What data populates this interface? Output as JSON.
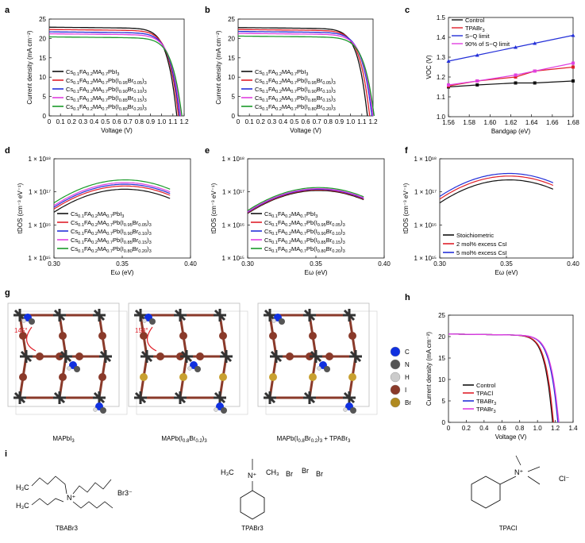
{
  "panels": {
    "a": "a",
    "b": "b",
    "c": "c",
    "d": "d",
    "e": "e",
    "f": "f",
    "g": "g",
    "h": "h",
    "i": "i"
  },
  "colors": {
    "black": "#111111",
    "red": "#e0202a",
    "blue": "#2430d8",
    "magenta": "#e040e0",
    "green": "#1a9a2a"
  },
  "chart_data": [
    {
      "panel": "a",
      "type": "line",
      "xlabel": "Voltage (V)",
      "ylabel": "Current density (mA cm⁻²)",
      "xlim": [
        0,
        1.2
      ],
      "ylim": [
        0,
        25
      ],
      "xticks": [
        "0",
        "0.1",
        "0.2",
        "0.3",
        "0.4",
        "0.5",
        "0.6",
        "0.7",
        "0.8",
        "0.9",
        "1.0",
        "1.1",
        "1.2"
      ],
      "yticks": [
        "0",
        "5",
        "10",
        "15",
        "20",
        "25"
      ],
      "series": [
        {
          "name": "Cs0.1FA0.2MA0.7PbI3",
          "color": "#111111",
          "jsc": 22.9,
          "voc": 1.135
        },
        {
          "name": "Cs0.1FA0.2MA0.7Pb(I0.95Br0.05)3",
          "color": "#e0202a",
          "jsc": 22.3,
          "voc": 1.15
        },
        {
          "name": "Cs0.1FA0.2MA0.7Pb(I0.90Br0.10)3",
          "color": "#2430d8",
          "jsc": 21.7,
          "voc": 1.16
        },
        {
          "name": "Cs0.1FA0.2MA0.7Pb(I0.85Br0.15)3",
          "color": "#e040e0",
          "jsc": 21.2,
          "voc": 1.17
        },
        {
          "name": "Cs0.1FA0.2MA0.7Pb(I0.80Br0.20)3",
          "color": "#1a9a2a",
          "jsc": 20.4,
          "voc": 1.18
        }
      ]
    },
    {
      "panel": "b",
      "type": "line",
      "xlabel": "Voltage (V)",
      "ylabel": "Current density (mA cm⁻²)",
      "xlim": [
        0,
        1.2
      ],
      "ylim": [
        0,
        25
      ],
      "xticks": [
        "0",
        "0.1",
        "0.2",
        "0.3",
        "0.4",
        "0.5",
        "0.6",
        "0.7",
        "0.8",
        "0.9",
        "1.0",
        "1.1",
        "1.2"
      ],
      "yticks": [
        "0",
        "5",
        "10",
        "15",
        "20",
        "25"
      ],
      "series": [
        {
          "name": "Cs0.1FA0.2MA0.7PbI3",
          "color": "#111111",
          "jsc": 22.8,
          "voc": 1.15
        },
        {
          "name": "Cs0.1FA0.2MA0.7Pb(I0.95Br0.05)3",
          "color": "#e0202a",
          "jsc": 22.3,
          "voc": 1.17
        },
        {
          "name": "Cs0.1FA0.2MA0.7Pb(I0.90Br0.10)3",
          "color": "#2430d8",
          "jsc": 21.8,
          "voc": 1.19
        },
        {
          "name": "Cs0.1FA0.2MA0.7Pb(I0.85Br0.15)3",
          "color": "#e040e0",
          "jsc": 21.3,
          "voc": 1.2
        },
        {
          "name": "Cs0.1FA0.2MA0.7Pb(I0.80Br0.20)3",
          "color": "#1a9a2a",
          "jsc": 20.6,
          "voc": 1.21
        }
      ]
    },
    {
      "panel": "c",
      "type": "line",
      "xlabel": "Bandgap (eV)",
      "ylabel": "VOC (V)",
      "xlim": [
        1.56,
        1.69
      ],
      "ylim": [
        1.0,
        1.5
      ],
      "xticks": [
        "1.56",
        "1.58",
        "1.60",
        "1.62",
        "1.64",
        "1.66",
        "1.68"
      ],
      "yticks": [
        "1.0",
        "1.1",
        "1.2",
        "1.3",
        "1.4",
        "1.5"
      ],
      "x": [
        1.56,
        1.59,
        1.63,
        1.65,
        1.69
      ],
      "series": [
        {
          "name": "Control",
          "color": "#111111",
          "values": [
            1.15,
            1.16,
            1.17,
            1.17,
            1.18
          ]
        },
        {
          "name": "TPABr3",
          "color": "#e0202a",
          "values": [
            1.155,
            1.18,
            1.2,
            1.23,
            1.25
          ]
        },
        {
          "name": "S−Q limit",
          "color": "#2430d8",
          "values": [
            1.28,
            1.31,
            1.35,
            1.37,
            1.41
          ]
        },
        {
          "name": "90% of S−Q limit",
          "color": "#e040e0",
          "values": [
            1.16,
            1.18,
            1.21,
            1.23,
            1.27
          ]
        }
      ]
    },
    {
      "panel": "d",
      "type": "line",
      "xlabel": "Eω (eV)",
      "ylabel": "tDOS (cm⁻³ eV⁻¹)",
      "log_y": true,
      "xlim": [
        0.3,
        0.4
      ],
      "ylim_exp": [
        15,
        18
      ],
      "xticks": [
        "0.30",
        "0.35",
        "0.40"
      ],
      "yticks": [
        "1 × 10¹⁵",
        "1 × 10¹⁶",
        "1 × 10¹⁷",
        "1 × 10¹⁸"
      ],
      "series": [
        {
          "name": "Cs0.1FA0.2MA0.7PbI3",
          "color": "#111111",
          "peak": 1.2e+17
        },
        {
          "name": "Cs0.1FA0.2MA0.7Pb(I0.95Br0.05)3",
          "color": "#e0202a",
          "peak": 1.5e+17
        },
        {
          "name": "Cs0.1FA0.2MA0.7Pb(I0.90Br0.10)3",
          "color": "#2430d8",
          "peak": 1.7e+17
        },
        {
          "name": "Cs0.1FA0.2MA0.7Pb(I0.85Br0.15)3",
          "color": "#e040e0",
          "peak": 1.9e+17
        },
        {
          "name": "Cs0.1FA0.2MA0.7Pb(I0.80Br0.20)3",
          "color": "#1a9a2a",
          "peak": 2.3e+17
        }
      ]
    },
    {
      "panel": "e",
      "type": "line",
      "xlabel": "Eω (eV)",
      "ylabel": "tDOS (cm⁻³ eV⁻¹)",
      "log_y": true,
      "xlim": [
        0.3,
        0.4
      ],
      "ylim_exp": [
        15,
        18
      ],
      "xticks": [
        "0.30",
        "0.35",
        "0.40"
      ],
      "yticks": [
        "1 × 10¹⁵",
        "1 × 10¹⁶",
        "1 × 10¹⁷",
        "1 × 10¹⁸"
      ],
      "series": [
        {
          "name": "Cs0.1FA0.2MA0.7PbI3",
          "color": "#111111",
          "peak": 1.1e+17
        },
        {
          "name": "Cs0.1FA0.2MA0.7Pb(I0.95Br0.05)3",
          "color": "#e0202a",
          "peak": 1.15e+17
        },
        {
          "name": "Cs0.1FA0.2MA0.7Pb(I0.90Br0.10)3",
          "color": "#2430d8",
          "peak": 1.2e+17
        },
        {
          "name": "Cs0.1FA0.2MA0.7Pb(I0.85Br0.15)3",
          "color": "#e040e0",
          "peak": 1.25e+17
        },
        {
          "name": "Cs0.1FA0.2MA0.7Pb(I0.80Br0.20)3",
          "color": "#1a9a2a",
          "peak": 1.35e+17
        }
      ]
    },
    {
      "panel": "f",
      "type": "line",
      "xlabel": "Eω (eV)",
      "ylabel": "tDOS (cm⁻³ eV⁻¹)",
      "log_y": true,
      "xlim": [
        0.3,
        0.4
      ],
      "ylim_exp": [
        15,
        18
      ],
      "xticks": [
        "0.30",
        "0.35",
        "0.40"
      ],
      "yticks": [
        "1 × 10¹⁵",
        "1 × 10¹⁶",
        "1 × 10¹⁷",
        "1 × 10¹⁸"
      ],
      "series": [
        {
          "name": "Stoichiometric",
          "color": "#111111",
          "peak": 2.3e+17
        },
        {
          "name": "2 mol% excess CsI",
          "color": "#e0202a",
          "peak": 3e+17
        },
        {
          "name": "5 mol% excess CsI",
          "color": "#2430d8",
          "peak": 3.6e+17
        }
      ]
    },
    {
      "panel": "h",
      "type": "line",
      "xlabel": "Voltage (V)",
      "ylabel": "Current density (mA cm⁻²)",
      "xlim": [
        0,
        1.4
      ],
      "ylim": [
        0,
        25
      ],
      "xticks": [
        "0",
        "0.2",
        "0.4",
        "0.6",
        "0.8",
        "1.0",
        "1.2",
        "1.4"
      ],
      "yticks": [
        "0",
        "5",
        "10",
        "15",
        "20",
        "25"
      ],
      "series": [
        {
          "name": "Control",
          "color": "#111111",
          "jsc": 20.6,
          "voc": 1.17
        },
        {
          "name": "TPACl",
          "color": "#e0202a",
          "jsc": 20.6,
          "voc": 1.18
        },
        {
          "name": "TBABr3",
          "color": "#2430d8",
          "jsc": 20.6,
          "voc": 1.23
        },
        {
          "name": "TPABr3",
          "color": "#e040e0",
          "jsc": 20.6,
          "voc": 1.24
        }
      ]
    }
  ],
  "panel_g": {
    "structures": [
      "MAPbI3",
      "MAPb(I0.8Br0.2)3",
      "MAPb(I0.8Br0.2)3 + TPABr3"
    ],
    "angles": [
      "145°",
      "158°"
    ],
    "legend": [
      "C",
      "N",
      "H",
      "I",
      "Br"
    ],
    "legend_colors": [
      "#1030e0",
      "#555555",
      "#cccccc",
      "#8a3a2a",
      "#b08a20"
    ]
  },
  "panel_i": {
    "molecules": [
      "TBABr3",
      "TPABr3",
      "TPACl"
    ],
    "counterions": [
      "Br3⁻",
      "Cl⁻"
    ]
  }
}
